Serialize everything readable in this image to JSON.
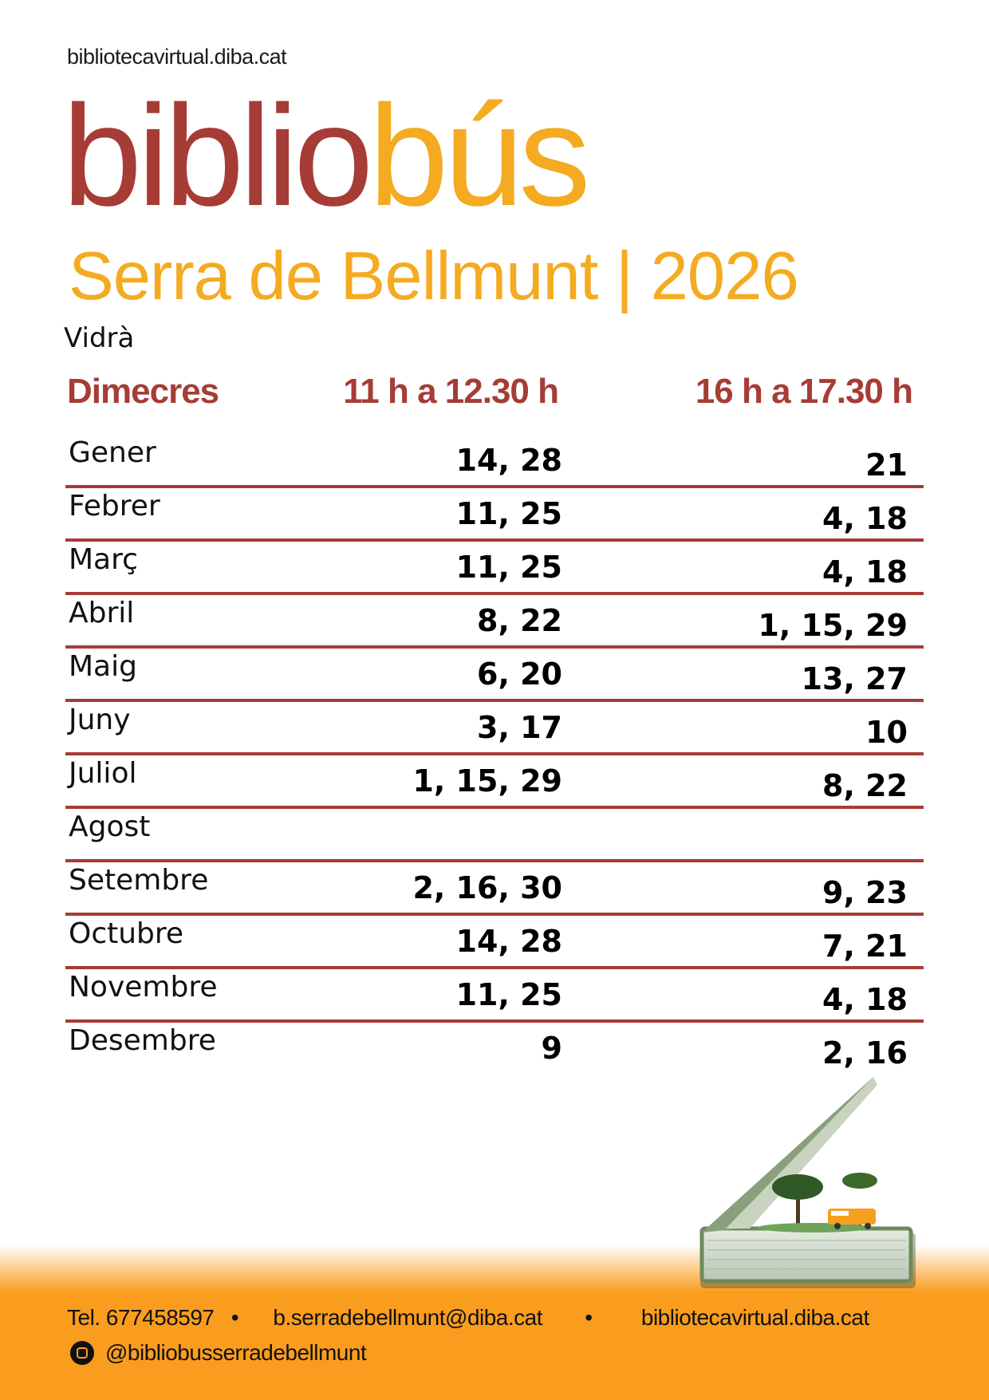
{
  "header": {
    "site": "bibliotecavirtual.diba.cat",
    "title_part1": "biblio",
    "title_part2": "bús",
    "subtitle": "Serra de Bellmunt | 2026",
    "location": "Vidrà"
  },
  "schedule": {
    "day": "Dimecres",
    "slot1": "11 h a 12.30 h",
    "slot2": "16 h a 17.30 h",
    "rows": [
      {
        "month": "Gener",
        "slot1": "14, 28",
        "slot2": "21"
      },
      {
        "month": "Febrer",
        "slot1": "11, 25",
        "slot2": "4, 18"
      },
      {
        "month": "Març",
        "slot1": "11, 25",
        "slot2": "4, 18"
      },
      {
        "month": "Abril",
        "slot1": "8, 22",
        "slot2": "1, 15, 29"
      },
      {
        "month": "Maig",
        "slot1": "6, 20",
        "slot2": "13, 27"
      },
      {
        "month": "Juny",
        "slot1": "3, 17",
        "slot2": "10"
      },
      {
        "month": "Juliol",
        "slot1": "1, 15, 29",
        "slot2": "8, 22"
      },
      {
        "month": "Agost",
        "slot1": "",
        "slot2": ""
      },
      {
        "month": "Setembre",
        "slot1": "2, 16, 30",
        "slot2": "9, 23"
      },
      {
        "month": "Octubre",
        "slot1": "14, 28",
        "slot2": "7, 21"
      },
      {
        "month": "Novembre",
        "slot1": "11, 25",
        "slot2": "4, 18"
      },
      {
        "month": "Desembre",
        "slot1": "9",
        "slot2": "2, 16"
      }
    ]
  },
  "footer": {
    "phone": "Tel. 677458597",
    "separator": "•",
    "email": "b.serradebellmunt@diba.cat",
    "website": "bibliotecavirtual.diba.cat",
    "instagram": "@bibliobusserradebellmunt"
  },
  "colors": {
    "brand_red": "#a63c36",
    "brand_orange": "#f4ab22",
    "footer_orange": "#fa9d1e"
  },
  "icons": {
    "social": "instagram-icon"
  }
}
